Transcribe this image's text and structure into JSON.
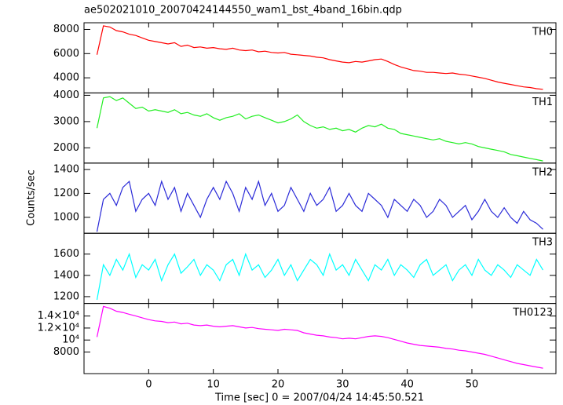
{
  "chart_data": {
    "type": "line",
    "title": "ae502021010_20070424144550_wam1_bst_4band_16bin.qdp",
    "xlabel": "Time [sec] 0 = 2007/04/24 14:45:50.521",
    "ylabel": "Counts/sec",
    "xlim": [
      -10,
      63
    ],
    "xticks": [
      0,
      10,
      20,
      30,
      40,
      50
    ],
    "x": [
      -8,
      -7,
      -6,
      -5,
      -4,
      -3,
      -2,
      -1,
      0,
      1,
      2,
      3,
      4,
      5,
      6,
      7,
      8,
      9,
      10,
      11,
      12,
      13,
      14,
      15,
      16,
      17,
      18,
      19,
      20,
      21,
      22,
      23,
      24,
      25,
      26,
      27,
      28,
      29,
      30,
      31,
      32,
      33,
      34,
      35,
      36,
      37,
      38,
      39,
      40,
      41,
      42,
      43,
      44,
      45,
      46,
      47,
      48,
      49,
      50,
      51,
      52,
      53,
      54,
      55,
      56,
      57,
      58,
      59,
      60,
      61
    ],
    "series": [
      {
        "name": "TH0",
        "color": "#ff0000",
        "ylim": [
          2750,
          8550
        ],
        "yticks": [
          4000,
          6000,
          8000
        ],
        "values": [
          5900,
          8300,
          8200,
          7900,
          7800,
          7600,
          7500,
          7300,
          7100,
          7000,
          6900,
          6800,
          6900,
          6600,
          6700,
          6500,
          6550,
          6450,
          6500,
          6400,
          6350,
          6450,
          6300,
          6250,
          6300,
          6150,
          6200,
          6100,
          6050,
          6100,
          5950,
          5900,
          5850,
          5800,
          5700,
          5650,
          5500,
          5400,
          5300,
          5250,
          5350,
          5300,
          5400,
          5500,
          5550,
          5350,
          5100,
          4900,
          4750,
          4600,
          4550,
          4450,
          4450,
          4400,
          4350,
          4400,
          4300,
          4250,
          4150,
          4050,
          3950,
          3800,
          3650,
          3550,
          3450,
          3350,
          3250,
          3200,
          3100,
          3050
        ]
      },
      {
        "name": "TH1",
        "color": "#22ee22",
        "ylim": [
          1420,
          4090
        ],
        "yticks": [
          2000,
          3000,
          4000
        ],
        "values": [
          2750,
          3900,
          3950,
          3800,
          3900,
          3700,
          3500,
          3550,
          3400,
          3450,
          3400,
          3350,
          3450,
          3300,
          3350,
          3250,
          3200,
          3300,
          3150,
          3050,
          3150,
          3200,
          3300,
          3100,
          3200,
          3250,
          3150,
          3050,
          2950,
          3000,
          3100,
          3250,
          3000,
          2850,
          2750,
          2800,
          2700,
          2750,
          2650,
          2700,
          2600,
          2750,
          2850,
          2800,
          2900,
          2750,
          2700,
          2550,
          2500,
          2450,
          2400,
          2350,
          2300,
          2350,
          2250,
          2200,
          2150,
          2200,
          2150,
          2050,
          2000,
          1950,
          1900,
          1850,
          1750,
          1700,
          1650,
          1600,
          1550,
          1500
        ]
      },
      {
        "name": "TH2",
        "color": "#2a2ad8",
        "ylim": [
          867,
          1453
        ],
        "yticks": [
          1000,
          1200,
          1400
        ],
        "values": [
          880,
          1150,
          1200,
          1100,
          1250,
          1300,
          1050,
          1150,
          1200,
          1100,
          1300,
          1150,
          1250,
          1050,
          1200,
          1100,
          1000,
          1150,
          1250,
          1150,
          1300,
          1200,
          1050,
          1250,
          1150,
          1300,
          1100,
          1200,
          1050,
          1100,
          1250,
          1150,
          1050,
          1200,
          1100,
          1150,
          1250,
          1050,
          1100,
          1200,
          1100,
          1050,
          1200,
          1150,
          1100,
          1000,
          1150,
          1100,
          1050,
          1150,
          1100,
          1000,
          1050,
          1150,
          1100,
          1000,
          1050,
          1100,
          980,
          1050,
          1150,
          1050,
          1000,
          1080,
          1000,
          950,
          1050,
          980,
          950,
          900
        ]
      },
      {
        "name": "TH3",
        "color": "#00ffff",
        "ylim": [
          1136,
          1796
        ],
        "yticks": [
          1200,
          1400,
          1600
        ],
        "values": [
          1170,
          1500,
          1400,
          1550,
          1450,
          1600,
          1380,
          1500,
          1450,
          1550,
          1350,
          1500,
          1600,
          1420,
          1480,
          1550,
          1400,
          1500,
          1450,
          1350,
          1500,
          1550,
          1400,
          1600,
          1450,
          1500,
          1380,
          1450,
          1550,
          1400,
          1500,
          1350,
          1450,
          1550,
          1500,
          1400,
          1600,
          1450,
          1500,
          1400,
          1550,
          1450,
          1350,
          1500,
          1450,
          1550,
          1400,
          1500,
          1450,
          1380,
          1500,
          1550,
          1400,
          1450,
          1500,
          1350,
          1450,
          1500,
          1400,
          1550,
          1450,
          1400,
          1500,
          1450,
          1380,
          1500,
          1450,
          1400,
          1550,
          1450
        ]
      },
      {
        "name": "TH0123",
        "color": "#ff00ff",
        "ylim": [
          4400,
          16100
        ],
        "yticks": [
          8000,
          {
            "value": 10000,
            "label": "10⁴"
          },
          {
            "value": 12000,
            "label": "1.2×10⁴"
          },
          {
            "value": 14000,
            "label": "1.4×10⁴"
          }
        ],
        "values": [
          10500,
          15600,
          15300,
          14800,
          14600,
          14300,
          14000,
          13700,
          13400,
          13200,
          13100,
          12900,
          13000,
          12700,
          12800,
          12500,
          12400,
          12500,
          12300,
          12200,
          12300,
          12400,
          12200,
          12000,
          12100,
          11900,
          11800,
          11700,
          11600,
          11800,
          11700,
          11600,
          11200,
          11000,
          10800,
          10700,
          10500,
          10400,
          10200,
          10300,
          10200,
          10400,
          10600,
          10700,
          10600,
          10400,
          10100,
          9800,
          9500,
          9300,
          9100,
          9000,
          8900,
          8800,
          8600,
          8500,
          8300,
          8200,
          8000,
          7800,
          7600,
          7300,
          7000,
          6700,
          6400,
          6100,
          5900,
          5700,
          5500,
          5300
        ]
      }
    ]
  }
}
